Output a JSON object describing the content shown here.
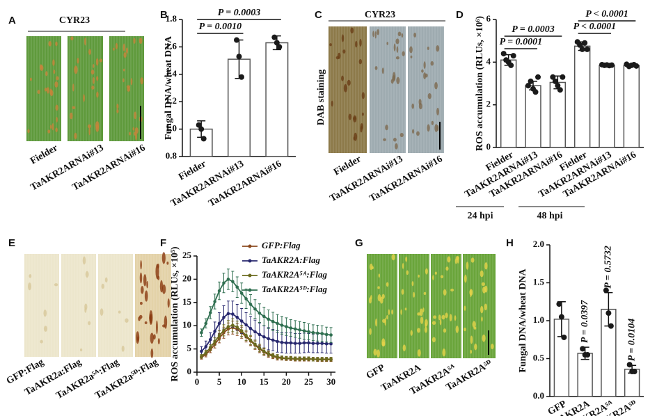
{
  "panel_letters": [
    "A",
    "B",
    "C",
    "D",
    "E",
    "F",
    "G",
    "H"
  ],
  "photos": [
    {
      "title": "CYR23",
      "labels": [
        "Fielder",
        "TaAKR2ARNAi#13",
        "TaAKR2ARNAi#16"
      ]
    },
    {
      "title": "CYR23",
      "side_label": "DAB staining",
      "labels": [
        "Fielder",
        "TaAKR2ARNAi#13",
        "TaAKR2ARNAi#16"
      ]
    },
    {
      "labels": [
        "GFP:Flag",
        "TaAKR2a:Flag",
        "TaAKR2a⁵ᴬ:Flag",
        "TaAKR2a⁵ᴰ:Flag"
      ]
    },
    {
      "labels": [
        "GFP",
        "TaAKR2A",
        "TaAKR2A⁵ᴬ",
        "TaAKR2A⁵ᴰ"
      ]
    }
  ],
  "chart_data": [
    {
      "type": "bar",
      "ylabel": "Fungal DNA/wheat DNA",
      "categories": [
        "Fielder",
        "TaAKR2ARNAi#13",
        "TaAKR2ARNAi#16"
      ],
      "values": [
        1.0,
        1.51,
        1.63
      ],
      "errors": [
        0.06,
        0.14,
        0.05
      ],
      "points": [
        [
          1.03,
          1.0,
          0.93
        ],
        [
          1.65,
          1.53,
          1.38
        ],
        [
          1.67,
          1.63,
          1.6
        ]
      ],
      "ylim": [
        0.8,
        1.8
      ],
      "yticks": [
        0.8,
        {
          "value": 1,
          "label": "1.0"
        },
        1.2,
        1.4,
        1.6,
        1.8
      ],
      "annotations": [
        "P = 0.0010",
        "P = 0.0003"
      ]
    },
    {
      "type": "bar",
      "ylabel": "ROS accumulation (RLUs, ×10⁶)",
      "categories": [
        "Fielder",
        "TaAKR2ARNAi#13",
        "TaAKR2ARNAi#16",
        "Fielder",
        "TaAKR2ARNAi#13",
        "TaAKR2ARNAi#16"
      ],
      "groups": [
        "24 hpi",
        "48 hpi"
      ],
      "values": [
        4.1,
        2.9,
        3.05,
        4.75,
        3.85,
        3.85
      ],
      "errors": [
        0.25,
        0.2,
        0.3,
        0.2,
        0.05,
        0.07
      ],
      "points": [
        [
          4.4,
          4.1,
          4.0,
          3.85,
          4.3
        ],
        [
          2.9,
          3.1,
          2.75,
          2.6,
          3.3
        ],
        [
          3.3,
          3.1,
          2.9,
          2.7,
          3.3
        ],
        [
          4.95,
          4.8,
          4.6,
          4.9,
          4.6
        ],
        [
          3.88,
          3.85,
          3.87,
          3.84,
          3.86
        ],
        [
          3.9,
          3.8,
          3.85,
          3.88,
          3.82
        ]
      ],
      "ylim": [
        0,
        6
      ],
      "yticks": [
        0,
        2,
        4,
        6
      ],
      "annotations": [
        "P = 0.0003",
        "P = 0.0001",
        "P < 0.0001",
        "P < 0.0001"
      ]
    },
    {
      "type": "line",
      "ylabel": "ROS accumulation (RLUs, ×10⁵)",
      "legend": "top-right",
      "x": [
        1,
        2,
        3,
        4,
        5,
        6,
        7,
        8,
        9,
        10,
        11,
        12,
        13,
        14,
        15,
        16,
        17,
        18,
        19,
        20,
        21,
        22,
        23,
        24,
        25,
        26,
        27,
        28,
        29,
        30
      ],
      "xlim": [
        0,
        31
      ],
      "xticks": [
        0,
        5,
        10,
        15,
        20,
        25,
        30
      ],
      "ylim": [
        0,
        25
      ],
      "yticks": [
        0,
        5,
        10,
        15,
        20,
        25
      ],
      "series": [
        {
          "name": "GFP:Flag",
          "color": "#8b4a1f",
          "values": [
            3.2,
            3.8,
            4.8,
            6.0,
            7.3,
            8.5,
            9.3,
            9.6,
            9.2,
            8.5,
            7.6,
            6.7,
            5.8,
            5.0,
            4.3,
            3.8,
            3.4,
            3.1,
            3.0,
            2.9,
            2.9,
            2.8,
            2.8,
            2.8,
            2.8,
            2.8,
            2.7,
            2.7,
            2.7,
            2.7
          ],
          "errors": [
            0.4,
            0.5,
            0.6,
            0.8,
            1.0,
            1.2,
            1.3,
            1.4,
            1.3,
            1.2,
            1.1,
            1.0,
            0.9,
            0.8,
            0.7,
            0.6,
            0.5,
            0.5,
            0.4,
            0.4,
            0.4,
            0.4,
            0.4,
            0.4,
            0.4,
            0.4,
            0.4,
            0.4,
            0.4,
            0.4
          ]
        },
        {
          "name": "TaAKR2A:Flag",
          "color": "#27276e",
          "values": [
            4.5,
            5.5,
            7.0,
            8.8,
            10.5,
            11.8,
            12.6,
            12.5,
            11.8,
            11.0,
            10.2,
            9.4,
            8.7,
            8.1,
            7.6,
            7.2,
            6.9,
            6.6,
            6.4,
            6.3,
            6.3,
            6.2,
            6.2,
            6.3,
            6.3,
            6.2,
            6.2,
            6.2,
            6.1,
            6.1
          ],
          "errors": [
            1.0,
            1.2,
            1.5,
            2.0,
            2.3,
            2.5,
            2.7,
            2.8,
            2.8,
            2.7,
            2.6,
            2.6,
            2.5,
            2.5,
            2.4,
            2.4,
            2.3,
            2.3,
            2.2,
            2.2,
            2.2,
            2.1,
            2.1,
            2.1,
            2.0,
            2.0,
            2.0,
            2.0,
            2.0,
            2.0
          ]
        },
        {
          "name": "TaAKR2A⁵ᴬ:Flag",
          "color": "#6b6b1f",
          "values": [
            3.4,
            4.2,
            5.3,
            6.6,
            7.9,
            9.0,
            9.8,
            10.1,
            9.7,
            8.9,
            7.9,
            6.9,
            6.0,
            5.2,
            4.5,
            4.0,
            3.6,
            3.3,
            3.1,
            3.0,
            3.0,
            2.9,
            2.9,
            2.9,
            2.9,
            2.8,
            2.8,
            2.8,
            2.8,
            2.8
          ],
          "errors": [
            0.4,
            0.5,
            0.6,
            0.8,
            1.0,
            1.2,
            1.3,
            1.4,
            1.3,
            1.2,
            1.1,
            1.0,
            0.9,
            0.8,
            0.7,
            0.6,
            0.5,
            0.5,
            0.4,
            0.4,
            0.4,
            0.4,
            0.4,
            0.4,
            0.4,
            0.4,
            0.4,
            0.4,
            0.4,
            0.4
          ]
        },
        {
          "name": "TaAKR2A⁵ᴰ:Flag",
          "color": "#2f6f50",
          "values": [
            8.5,
            10.5,
            12.8,
            15.2,
            17.5,
            19.2,
            20.0,
            19.5,
            18.3,
            17.0,
            15.8,
            14.6,
            13.6,
            12.7,
            12.0,
            11.4,
            10.9,
            10.5,
            10.1,
            9.8,
            9.5,
            9.3,
            9.1,
            8.9,
            8.7,
            8.5,
            8.4,
            8.3,
            8.1,
            8.0
          ],
          "errors": [
            0.8,
            1.0,
            1.3,
            1.6,
            1.9,
            2.1,
            2.2,
            2.2,
            2.2,
            2.2,
            2.1,
            2.1,
            2.0,
            2.0,
            2.0,
            2.0,
            2.0,
            1.9,
            1.9,
            1.9,
            1.8,
            1.8,
            1.8,
            1.8,
            1.7,
            1.7,
            1.7,
            1.7,
            1.6,
            1.6
          ]
        }
      ]
    },
    {
      "type": "bar",
      "ylabel": "Fungal DNA/wheat DNA",
      "categories": [
        "GFP",
        "TaAKR2A",
        "TaAKR2A⁵ᴬ",
        "TaAKR2A⁵ᴰ"
      ],
      "values": [
        1.02,
        0.57,
        1.15,
        0.36
      ],
      "errors": [
        0.23,
        0.08,
        0.22,
        0.05
      ],
      "points": [
        [
          1.22,
          1.05,
          0.78
        ],
        [
          0.63,
          0.55,
          0.55
        ],
        [
          1.4,
          1.1,
          0.93
        ],
        [
          0.42,
          0.33,
          0.33
        ]
      ],
      "ylim": [
        0,
        2
      ],
      "yticks": [
        {
          "value": 0,
          "label": "0.0"
        },
        0.5,
        {
          "value": 1,
          "label": "1.0"
        },
        1.5,
        {
          "value": 2,
          "label": "2.0"
        }
      ],
      "annotations": [
        "P = 0.0397",
        "P = 0.5732",
        "P = 0.0104"
      ]
    }
  ]
}
